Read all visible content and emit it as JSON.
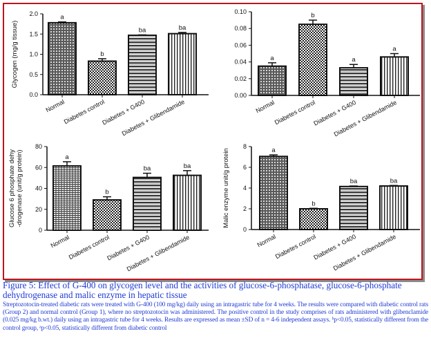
{
  "colors": {
    "frame_border": "#c0141c",
    "caption_text": "#1f3bd6",
    "axis": "#111111"
  },
  "chart_data": [
    {
      "type": "bar",
      "title": "",
      "xlabel": "",
      "ylabel": "Glycogen (mg/g tissue)",
      "ylim": [
        0,
        2.0
      ],
      "yticks": [
        "0.0",
        "0.5",
        "1.0",
        "1.5",
        "2.0"
      ],
      "ytick_values": [
        0,
        0.5,
        1.0,
        1.5,
        2.0
      ],
      "categories": [
        "Normal",
        "Diabetes control",
        "Diabetes + G400",
        "Diabetes + Glibendamide"
      ],
      "values": [
        1.78,
        0.83,
        1.47,
        1.51
      ],
      "errors": [
        0.02,
        0.06,
        0.01,
        0.03
      ],
      "significance": [
        "a",
        "b",
        "ba",
        "ba"
      ],
      "patterns": [
        "dots-dark",
        "checker",
        "hlines",
        "vlines"
      ]
    },
    {
      "type": "bar",
      "title": "",
      "xlabel": "",
      "ylabel": "",
      "ylim": [
        0,
        0.1
      ],
      "yticks": [
        "0.00",
        "0.02",
        "0.04",
        "0.06",
        "0.08",
        "0.10"
      ],
      "ytick_values": [
        0,
        0.02,
        0.04,
        0.06,
        0.08,
        0.1
      ],
      "categories": [
        "Normal",
        "Diabetes control",
        "Diabetes + G400",
        "Diabetes + Glibendamide"
      ],
      "values": [
        0.035,
        0.085,
        0.033,
        0.046
      ],
      "errors": [
        0.004,
        0.005,
        0.004,
        0.004
      ],
      "significance": [
        "a",
        "b",
        "a",
        "a"
      ],
      "patterns": [
        "dots-dark",
        "checker",
        "hlines",
        "vlines"
      ]
    },
    {
      "type": "bar",
      "title": "",
      "xlabel": "",
      "ylabel": "Glucose 6 phosphate dehy -drogenase (unit/g protein)",
      "ylabel_lines": [
        "Glucose 6 phosphate dehy",
        "-drogenase (unit/g protein)"
      ],
      "ylim": [
        0,
        80
      ],
      "yticks": [
        "0",
        "20",
        "40",
        "60",
        "80"
      ],
      "ytick_values": [
        0,
        20,
        40,
        60,
        80
      ],
      "categories": [
        "Normal",
        "Diabetes control",
        "Diabetes + G400",
        "Diabetes + Glibendamide"
      ],
      "values": [
        61.5,
        29.0,
        50.5,
        52.5
      ],
      "errors": [
        4.0,
        3.0,
        4.0,
        4.5
      ],
      "significance": [
        "a",
        "b",
        "ba",
        "ba"
      ],
      "patterns": [
        "hlines-dense",
        "checker",
        "hlines",
        "vlines"
      ]
    },
    {
      "type": "bar",
      "title": "",
      "xlabel": "",
      "ylabel": "Malic enzyme unit/g protein",
      "ylim": [
        0,
        8
      ],
      "yticks": [
        "0",
        "2",
        "4",
        "6",
        "8"
      ],
      "ytick_values": [
        0,
        2,
        4,
        6,
        8
      ],
      "categories": [
        "Normal",
        "Diabetes control",
        "Diabetes + G400",
        "Diabetes + Glibendamide"
      ],
      "values": [
        7.05,
        2.0,
        4.15,
        4.2
      ],
      "errors": [
        0.15,
        0.05,
        0.05,
        0.05
      ],
      "significance": [
        "a",
        "b",
        "ba",
        "ba"
      ],
      "patterns": [
        "dots-dark",
        "checker",
        "hlines",
        "vlines"
      ]
    }
  ],
  "caption": {
    "title": "Figure 5:  Effect of G-400 on glycogen level and the activities of glucose-6-phosphatase, glucose-6-phosphate dehydrogenase and malic enzyme in hepatic tissue",
    "body": "Streptozotocin-treated diabetic rats were treated with G-400 (100 mg/kg) daily using an intragastric tube for 4 weeks. The results were compared with diabetic control rats (Group 2) and normal control (Group 1), where no streptozotocin was administered. The positive control in the study comprises of rats administered with glibenclamide (0.025 mg/kg b.wt.) daily using an intragastric tube for 4 weeks.  Results are expressed as mean ±SD of n = 4-6 independent assays. ᵇp<0.05, statistically different from the control group, ᵃp<0.05, statistically different from diabetic control"
  }
}
